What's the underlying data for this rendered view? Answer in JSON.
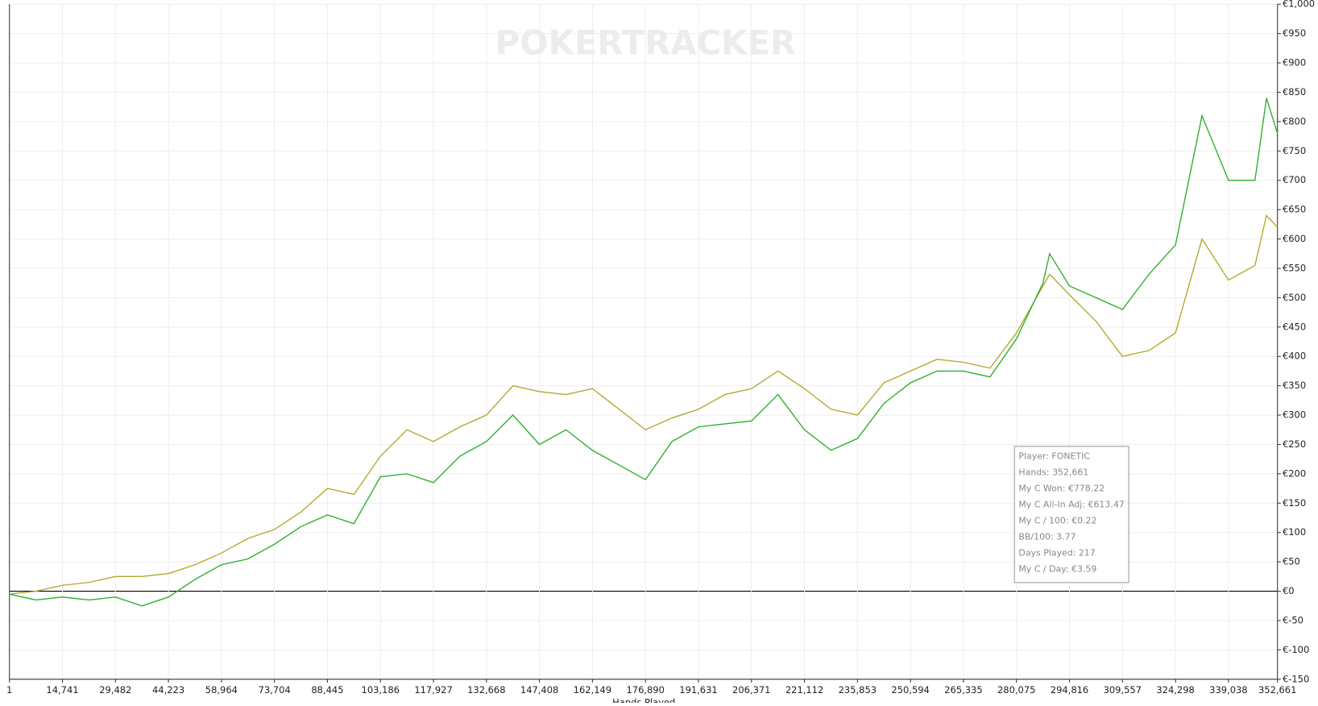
{
  "chart_data": {
    "type": "line",
    "watermark": "POKERTRACKER",
    "x_label": "Hands Played",
    "x": [
      1,
      7370,
      14741,
      22111,
      29482,
      36852,
      44223,
      51593,
      58964,
      66334,
      73704,
      81075,
      88445,
      95816,
      103186,
      110557,
      117927,
      125298,
      132668,
      140038,
      147408,
      154779,
      162149,
      169520,
      176890,
      184260,
      191631,
      199001,
      206371,
      213742,
      221112,
      228483,
      235853,
      243224,
      250594,
      257964,
      265335,
      272705,
      280075,
      287446,
      289300,
      294816,
      302187,
      309557,
      316927,
      324298,
      331668,
      339038,
      346409,
      349600,
      352661
    ],
    "series": [
      {
        "color": "#2bae2b",
        "values": [
          -5,
          -15,
          -10,
          -15,
          -10,
          -25,
          -10,
          20,
          45,
          55,
          80,
          110,
          130,
          115,
          195,
          200,
          185,
          230,
          255,
          300,
          250,
          275,
          240,
          215,
          190,
          255,
          280,
          285,
          290,
          335,
          275,
          240,
          260,
          320,
          355,
          375,
          375,
          365,
          430,
          525,
          575,
          520,
          500,
          480,
          540,
          590,
          810,
          700,
          700,
          840,
          780
        ]
      },
      {
        "color": "#b3a72c",
        "values": [
          -5,
          0,
          10,
          15,
          25,
          25,
          30,
          45,
          65,
          90,
          105,
          135,
          175,
          165,
          230,
          275,
          255,
          280,
          300,
          350,
          340,
          335,
          345,
          310,
          275,
          295,
          310,
          335,
          345,
          375,
          345,
          310,
          300,
          355,
          375,
          395,
          390,
          380,
          440,
          520,
          540,
          505,
          460,
          400,
          410,
          440,
          600,
          530,
          555,
          640,
          620
        ]
      }
    ],
    "xlim": [
      1,
      352661
    ],
    "xticks": [
      1,
      {
        "value": 14741,
        "label": "14,741"
      },
      {
        "value": 29482,
        "label": "29,482"
      },
      {
        "value": 44223,
        "label": "44,223"
      },
      {
        "value": 58964,
        "label": "58,964"
      },
      {
        "value": 73704,
        "label": "73,704"
      },
      {
        "value": 88445,
        "label": "88,445"
      },
      {
        "value": 103186,
        "label": "103,186"
      },
      {
        "value": 117927,
        "label": "117,927"
      },
      {
        "value": 132668,
        "label": "132,668"
      },
      {
        "value": 147408,
        "label": "147,408"
      },
      {
        "value": 162149,
        "label": "162,149"
      },
      {
        "value": 176890,
        "label": "176,890"
      },
      {
        "value": 191631,
        "label": "191,631"
      },
      {
        "value": 206371,
        "label": "206,371"
      },
      {
        "value": 221112,
        "label": "221,112"
      },
      {
        "value": 235853,
        "label": "235,853"
      },
      {
        "value": 250594,
        "label": "250,594"
      },
      {
        "value": 265335,
        "label": "265,335"
      },
      {
        "value": 280075,
        "label": "280,075"
      },
      {
        "value": 294816,
        "label": "294,816"
      },
      {
        "value": 309557,
        "label": "309,557"
      },
      {
        "value": 324298,
        "label": "324,298"
      },
      {
        "value": 339038,
        "label": "339,038"
      },
      {
        "value": 352661,
        "label": "352,661"
      }
    ],
    "ylim": [
      -150,
      1000
    ],
    "yticks": [
      {
        "value": -150,
        "label": "€-150"
      },
      {
        "value": -100,
        "label": "€-100"
      },
      {
        "value": -50,
        "label": "€-50"
      },
      {
        "value": 0,
        "label": "€0"
      },
      {
        "value": 50,
        "label": "€50"
      },
      {
        "value": 100,
        "label": "€100"
      },
      {
        "value": 150,
        "label": "€150"
      },
      {
        "value": 200,
        "label": "€200"
      },
      {
        "value": 250,
        "label": "€250"
      },
      {
        "value": 300,
        "label": "€300"
      },
      {
        "value": 350,
        "label": "€350"
      },
      {
        "value": 400,
        "label": "€400"
      },
      {
        "value": 450,
        "label": "€450"
      },
      {
        "value": 500,
        "label": "€500"
      },
      {
        "value": 550,
        "label": "€550"
      },
      {
        "value": 600,
        "label": "€600"
      },
      {
        "value": 650,
        "label": "€650"
      },
      {
        "value": 700,
        "label": "€700"
      },
      {
        "value": 750,
        "label": "€750"
      },
      {
        "value": 800,
        "label": "€800"
      },
      {
        "value": 850,
        "label": "€850"
      },
      {
        "value": 900,
        "label": "€900"
      },
      {
        "value": 950,
        "label": "€950"
      },
      {
        "value": 1000,
        "label": "€1,000"
      }
    ],
    "grid": true,
    "tooltip": [
      "Player: FONETIC",
      "Hands: 352,661",
      "My C Won: €778.22",
      "My C All-In Adj: €613.47",
      "My C / 100: €0.22",
      "BB/100: 3.77",
      "Days Played: 217",
      "My C / Day: €3.59"
    ]
  }
}
